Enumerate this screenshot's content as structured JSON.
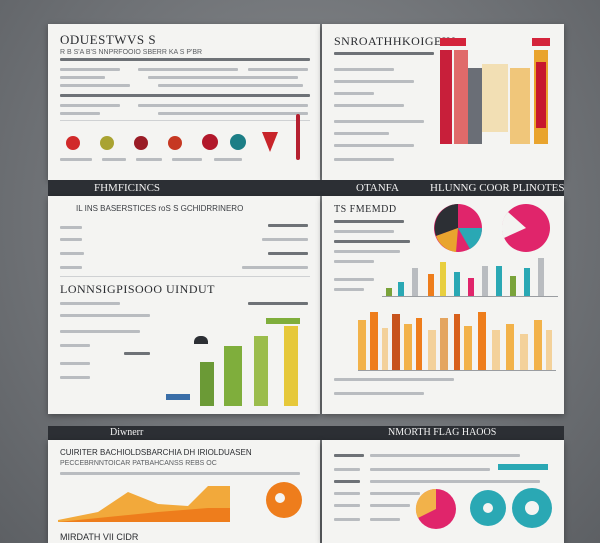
{
  "poster_top_left_title": "ODUESTWVS S",
  "poster_top_left_subtitle": "R B S'A  B'S NNPRFOOIO SBERR KA S  P'BR",
  "poster_top_right_title": "SNROATHHKOIGEIN",
  "band_top_left": "FHMFICINCS",
  "band_top_mid": "OTANFA",
  "band_top_right": "HLUNNG COOR PLINOTES",
  "mid_left_header": "IL INS BASERSTICES roS S GCHIDRRINERO",
  "mid_right_title": "TS FMEMDD",
  "mid_left_title": "LONNSIGPISOOO UINDUT",
  "band_bottom_left": "Diwnerr",
  "band_bottom_right": "NMORTH  FLAG HAOOS",
  "bottom_left_title": "CUIRITER BACHIOLDSBARCHIA DH IRIOLDUASEN",
  "bottom_left_subtitle": "PECCEBRNNTOICAR PATBAHCANSS REBS OC",
  "bottom_left_footer": "MIRDATH VII CIDR",
  "colors": {
    "red": "#d12a2a",
    "crimson": "#b5182e",
    "orange": "#ee7d1c",
    "amber": "#f2a93b",
    "yellow": "#e8cf3f",
    "green": "#7aa33a",
    "teal": "#2aa8b4",
    "magenta": "#e0256b",
    "dark": "#2c2f34"
  },
  "icons": [
    "red-circle-icon",
    "yellow-green-icon",
    "maroon-circle-icon",
    "red-circle-icon-2",
    "dark-red-icon",
    "teal-shield-icon",
    "red-pin-icon",
    "quill-icon"
  ]
}
